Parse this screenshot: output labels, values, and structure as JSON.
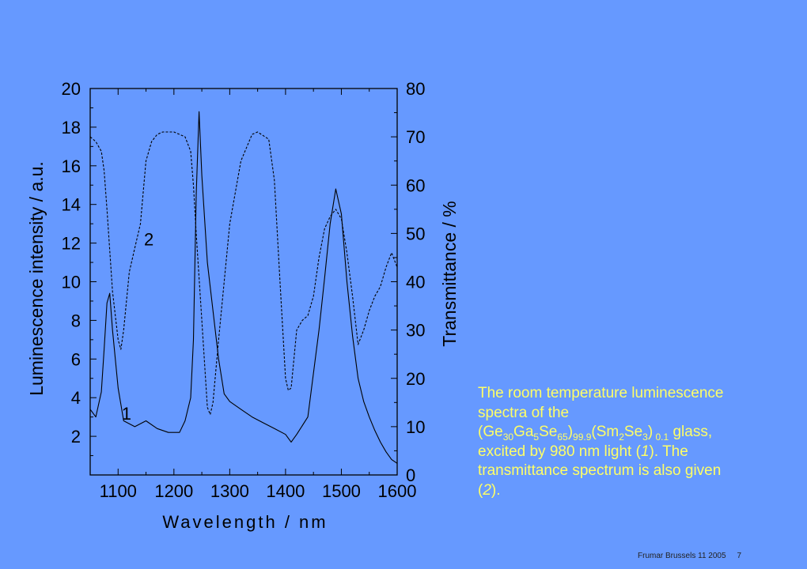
{
  "chart_data": {
    "type": "line",
    "xlabel": "Wavelength / nm",
    "ylabel_left": "Luminescence intensity / a.u.",
    "ylabel_right": "Transmittance / %",
    "xlim": [
      1050,
      1600
    ],
    "ylim_left": [
      0,
      20
    ],
    "ylim_right": [
      0,
      80
    ],
    "x_ticks": [
      1100,
      1200,
      1300,
      1400,
      1500,
      1600
    ],
    "y_left_ticks": [
      2,
      4,
      6,
      8,
      10,
      12,
      14,
      16,
      18,
      20
    ],
    "y_right_ticks": [
      0,
      10,
      20,
      30,
      40,
      50,
      60,
      70,
      80
    ],
    "grid": false,
    "series": [
      {
        "name": "1",
        "axis": "left",
        "style": "solid",
        "x": [
          1050,
          1060,
          1070,
          1075,
          1080,
          1085,
          1090,
          1100,
          1110,
          1130,
          1150,
          1170,
          1190,
          1210,
          1220,
          1230,
          1235,
          1240,
          1245,
          1250,
          1260,
          1270,
          1280,
          1290,
          1300,
          1320,
          1340,
          1360,
          1380,
          1400,
          1410,
          1420,
          1440,
          1460,
          1470,
          1480,
          1490,
          1500,
          1510,
          1520,
          1530,
          1540,
          1550,
          1560,
          1570,
          1580,
          1590,
          1600
        ],
        "y": [
          3.4,
          3.0,
          4.3,
          6.5,
          8.9,
          9.4,
          7.5,
          4.5,
          2.8,
          2.5,
          2.8,
          2.4,
          2.2,
          2.2,
          2.8,
          4.0,
          7.0,
          14.5,
          18.8,
          15.5,
          11.0,
          8.5,
          6.0,
          4.2,
          3.8,
          3.4,
          3.0,
          2.7,
          2.4,
          2.1,
          1.7,
          2.1,
          3.0,
          7.5,
          10.2,
          13.0,
          14.8,
          13.5,
          10.0,
          7.2,
          5.0,
          3.8,
          3.0,
          2.3,
          1.7,
          1.2,
          0.8,
          0.6
        ]
      },
      {
        "name": "2",
        "axis": "right",
        "style": "dashed",
        "x": [
          1050,
          1060,
          1070,
          1075,
          1080,
          1090,
          1100,
          1105,
          1110,
          1120,
          1130,
          1140,
          1150,
          1160,
          1170,
          1180,
          1200,
          1220,
          1230,
          1235,
          1240,
          1250,
          1260,
          1265,
          1270,
          1280,
          1300,
          1320,
          1340,
          1350,
          1370,
          1380,
          1390,
          1400,
          1405,
          1410,
          1420,
          1430,
          1440,
          1450,
          1460,
          1470,
          1480,
          1490,
          1500,
          1510,
          1520,
          1530,
          1540,
          1550,
          1560,
          1570,
          1580,
          1590,
          1600
        ],
        "y": [
          70,
          69,
          67,
          63,
          55,
          38,
          28,
          26,
          30,
          42,
          47,
          52,
          65,
          69,
          70.5,
          71,
          71,
          70,
          67,
          60,
          50,
          32,
          14,
          12.5,
          15,
          28,
          52,
          65,
          70.5,
          71,
          69.5,
          61,
          40,
          20,
          17.5,
          18,
          30,
          32,
          33,
          37,
          45,
          51,
          53.5,
          55,
          53,
          46,
          37,
          27,
          30,
          34,
          37,
          39,
          43,
          46,
          43
        ]
      }
    ],
    "annotations": [
      {
        "text": "1",
        "x": 1115,
        "y": 3.2
      },
      {
        "text": "2",
        "x": 1155,
        "y": 12.2
      }
    ]
  },
  "caption": {
    "line1": "The room temperature luminescence",
    "line2": "spectra of the",
    "p3_a": "(Ge",
    "p3_s1": "30",
    "p3_b": "Ga",
    "p3_s2": "5",
    "p3_c": "Se",
    "p3_s3": "65",
    "p3_d": ")",
    "p3_s4": "99.9",
    "p3_e": "(Sm",
    "p3_s5": "2",
    "p3_f": "Se",
    "p3_s6": "3",
    "p3_g": ")",
    "p3_s7": " 0.1",
    "p3_h": " glass,",
    "p4_a": "excited by 980 nm light (",
    "p4_b": "1",
    "p4_c": "). The",
    "line5": "transmittance spectrum is also given",
    "p6_a": "(",
    "p6_b": "2",
    "p6_c": ")."
  },
  "footer": {
    "text": "Frumar Brussels 11 2005",
    "page": "7"
  }
}
